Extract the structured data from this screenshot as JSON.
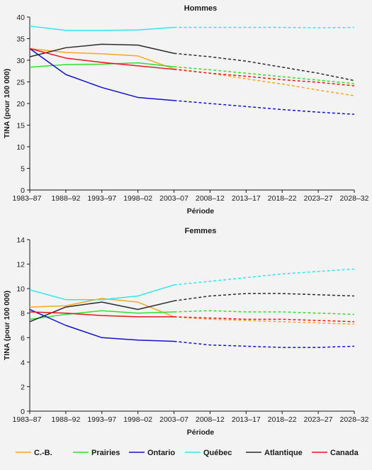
{
  "colors": {
    "background": "#f3f3f4",
    "axis": "#1a1a1a",
    "C.-B.": "#f5a623",
    "Prairies": "#2ee02e",
    "Ontario": "#1010d0",
    "Québec": "#30e6ee",
    "Atlantique": "#2b2b2b",
    "Canada": "#e8141e"
  },
  "legend": {
    "position": "bottom",
    "items": [
      "C.-B.",
      "Prairies",
      "Ontario",
      "Québec",
      "Atlantique",
      "Canada"
    ]
  },
  "chart_data": [
    {
      "type": "line",
      "title": "Hommes",
      "xlabel": "Période",
      "ylabel": "TINA (pour 100 000)",
      "ylim": [
        0,
        40
      ],
      "yticks": [
        0,
        5,
        10,
        15,
        20,
        25,
        30,
        35,
        40
      ],
      "grid": false,
      "categories": [
        "1983–87",
        "1988–92",
        "1993–97",
        "1998–02",
        "2003–07",
        "2008–12",
        "2013–17",
        "2018–22",
        "2023–27",
        "2028–32"
      ],
      "observed_through": "2003–07",
      "projected_style": "dashed",
      "series": [
        {
          "name": "C.-B.",
          "values": [
            32.7,
            31.8,
            31.5,
            31.0,
            28.0,
            27.0,
            25.7,
            24.5,
            23.1,
            21.8
          ]
        },
        {
          "name": "Prairies",
          "values": [
            28.4,
            29.0,
            29.1,
            29.4,
            28.5,
            27.8,
            27.0,
            26.2,
            25.4,
            24.6
          ]
        },
        {
          "name": "Ontario",
          "values": [
            32.7,
            26.7,
            23.7,
            21.4,
            20.7,
            20.0,
            19.3,
            18.6,
            18.0,
            17.5
          ]
        },
        {
          "name": "Québec",
          "values": [
            37.9,
            36.9,
            36.9,
            37.0,
            37.6,
            37.6,
            37.6,
            37.6,
            37.5,
            37.6
          ]
        },
        {
          "name": "Atlantique",
          "values": [
            30.8,
            32.9,
            33.7,
            33.5,
            31.6,
            30.8,
            29.8,
            28.4,
            27.0,
            25.3
          ]
        },
        {
          "name": "Canada",
          "values": [
            32.7,
            30.5,
            29.5,
            28.7,
            27.9,
            27.0,
            26.3,
            25.5,
            24.9,
            24.1
          ]
        }
      ]
    },
    {
      "type": "line",
      "title": "Femmes",
      "xlabel": "Période",
      "ylabel": "TINA (pour 100 000)",
      "ylim": [
        0,
        14
      ],
      "yticks": [
        0,
        2,
        4,
        6,
        8,
        10,
        12,
        14
      ],
      "grid": false,
      "categories": [
        "1983–87",
        "1988–92",
        "1993–97",
        "1998–02",
        "2003–07",
        "2008–12",
        "2013–17",
        "2018–22",
        "2023–27",
        "2028–32"
      ],
      "observed_through": "2003–07",
      "projected_style": "dashed",
      "series": [
        {
          "name": "C.-B.",
          "values": [
            8.5,
            8.6,
            9.2,
            8.9,
            7.7,
            7.5,
            7.4,
            7.3,
            7.2,
            7.1
          ]
        },
        {
          "name": "Prairies",
          "values": [
            7.5,
            7.9,
            8.2,
            8.0,
            8.1,
            8.2,
            8.1,
            8.1,
            8.0,
            7.9
          ]
        },
        {
          "name": "Ontario",
          "values": [
            8.3,
            7.0,
            6.0,
            5.8,
            5.7,
            5.4,
            5.3,
            5.2,
            5.2,
            5.3
          ]
        },
        {
          "name": "Québec",
          "values": [
            9.9,
            9.1,
            9.1,
            9.4,
            10.3,
            10.6,
            10.9,
            11.2,
            11.4,
            11.6
          ]
        },
        {
          "name": "Atlantique",
          "values": [
            7.3,
            8.5,
            8.9,
            8.3,
            9.0,
            9.4,
            9.6,
            9.6,
            9.5,
            9.4
          ]
        },
        {
          "name": "Canada",
          "values": [
            8.1,
            8.0,
            7.8,
            7.7,
            7.7,
            7.6,
            7.5,
            7.5,
            7.4,
            7.3
          ]
        }
      ]
    }
  ]
}
